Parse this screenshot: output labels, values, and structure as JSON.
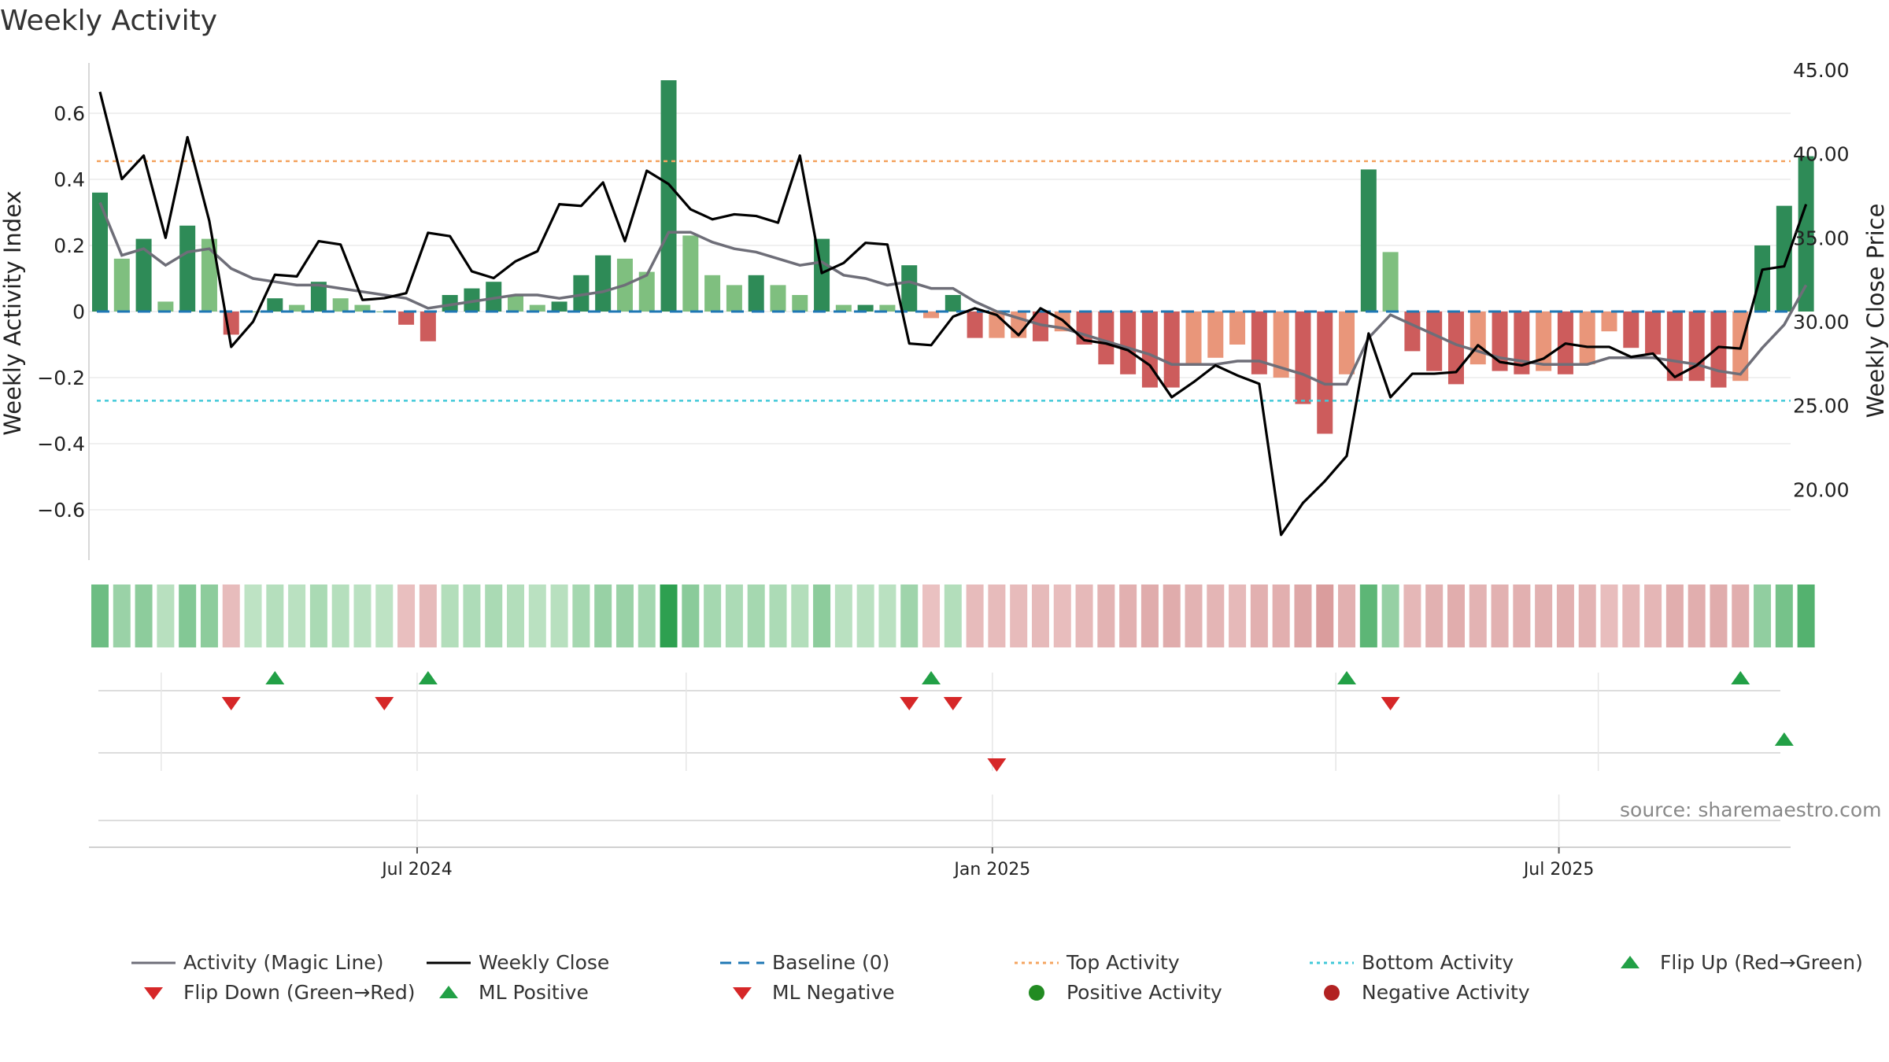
{
  "title": "Weekly Activity",
  "source": "source: sharemaestro.com",
  "axes": {
    "left_label": "Weekly Activity Index",
    "right_label": "Weekly Close Price",
    "left_ticks": [
      "0.6",
      "0.4",
      "0.2",
      "0",
      "−0.2",
      "−0.4",
      "−0.6"
    ],
    "left_tick_values": [
      0.6,
      0.4,
      0.2,
      0,
      -0.2,
      -0.4,
      -0.6
    ],
    "right_ticks": [
      "45.00",
      "40.00",
      "35.00",
      "30.00",
      "25.00",
      "20.00"
    ],
    "right_tick_values": [
      45,
      40,
      35,
      30,
      25,
      20
    ],
    "x_ticks": [
      {
        "label": "Jul 2024",
        "index": 14.5
      },
      {
        "label": "Jan 2025",
        "index": 40.8
      },
      {
        "label": "Jul 2025",
        "index": 66.7
      }
    ]
  },
  "colors": {
    "pos_strong": "#2e8b57",
    "pos_light": "#7fbf7f",
    "neg_strong": "#cd5c5c",
    "neg_light": "#e9967a",
    "magic_line": "#6e6e78",
    "close_line": "#000000",
    "baseline": "#1f77b4",
    "top": "#f4a460",
    "bottom": "#40c8d8",
    "flip_up": "#22a046",
    "flip_down": "#d62728"
  },
  "legend": [
    {
      "label": "Activity (Magic Line)",
      "symbol": "magic-line"
    },
    {
      "label": "Weekly Close",
      "symbol": "close-line"
    },
    {
      "label": "Baseline (0)",
      "symbol": "baseline"
    },
    {
      "label": "Top Activity",
      "symbol": "top"
    },
    {
      "label": "Bottom Activity",
      "symbol": "bottom"
    },
    {
      "label": "Flip Up (Red→Green)",
      "symbol": "tri-up"
    },
    {
      "label": "Flip Down (Green→Red)",
      "symbol": "tri-down"
    },
    {
      "label": "ML Positive",
      "symbol": "tri-up"
    },
    {
      "label": "ML Negative",
      "symbol": "tri-down"
    },
    {
      "label": "Positive Activity",
      "symbol": "dot-green"
    },
    {
      "label": "Negative Activity",
      "symbol": "dot-red"
    }
  ],
  "chart_data": {
    "type": "bar",
    "top_activity": 0.455,
    "bottom_activity": -0.27,
    "ylim": [
      -0.75,
      0.75
    ],
    "y2lim": [
      16,
      46
    ],
    "activity": [
      0.36,
      0.16,
      0.22,
      0.03,
      0.26,
      0.22,
      -0.07,
      0,
      0.04,
      0.02,
      0.09,
      0.04,
      0.02,
      0,
      -0.04,
      -0.09,
      0.05,
      0.07,
      0.09,
      0.05,
      0.02,
      0.03,
      0.11,
      0.17,
      0.16,
      0.12,
      0.7,
      0.23,
      0.11,
      0.08,
      0.11,
      0.08,
      0.05,
      0.22,
      0.02,
      0.02,
      0.02,
      0.14,
      -0.02,
      0.05,
      -0.08,
      -0.08,
      -0.08,
      -0.09,
      -0.06,
      -0.1,
      -0.16,
      -0.19,
      -0.23,
      -0.23,
      -0.16,
      -0.14,
      -0.1,
      -0.19,
      -0.2,
      -0.28,
      -0.37,
      -0.19,
      0.43,
      0.18,
      -0.12,
      -0.18,
      -0.22,
      -0.16,
      -0.18,
      -0.19,
      -0.18,
      -0.19,
      -0.16,
      -0.06,
      -0.11,
      -0.13,
      -0.21,
      -0.21,
      -0.23,
      -0.21,
      0.2,
      0.32,
      0.47
    ],
    "shade": [
      1,
      0,
      1,
      0,
      1,
      0,
      1,
      0,
      1,
      0,
      1,
      0,
      0,
      0,
      1,
      1,
      1,
      1,
      1,
      0,
      0,
      1,
      1,
      1,
      0,
      0,
      1,
      0,
      0,
      0,
      1,
      0,
      0,
      1,
      0,
      1,
      0,
      1,
      0,
      1,
      1,
      0,
      0,
      1,
      0,
      1,
      1,
      1,
      1,
      1,
      0,
      0,
      0,
      1,
      0,
      1,
      1,
      0,
      1,
      0,
      1,
      1,
      1,
      0,
      1,
      1,
      0,
      1,
      0,
      0,
      1,
      1,
      1,
      1,
      1,
      0,
      1,
      1,
      1
    ],
    "magic_line": [
      0.33,
      0.17,
      0.19,
      0.14,
      0.18,
      0.19,
      0.13,
      0.1,
      0.09,
      0.08,
      0.08,
      0.07,
      0.06,
      0.05,
      0.04,
      0.01,
      0.02,
      0.03,
      0.04,
      0.05,
      0.05,
      0.04,
      0.05,
      0.06,
      0.08,
      0.11,
      0.24,
      0.24,
      0.21,
      0.19,
      0.18,
      0.16,
      0.14,
      0.15,
      0.11,
      0.1,
      0.08,
      0.09,
      0.07,
      0.07,
      0.03,
      0.0,
      -0.02,
      -0.04,
      -0.05,
      -0.07,
      -0.09,
      -0.11,
      -0.13,
      -0.16,
      -0.16,
      -0.16,
      -0.15,
      -0.15,
      -0.17,
      -0.19,
      -0.22,
      -0.22,
      -0.08,
      -0.01,
      -0.04,
      -0.07,
      -0.1,
      -0.12,
      -0.14,
      -0.15,
      -0.16,
      -0.16,
      -0.16,
      -0.14,
      -0.14,
      -0.14,
      -0.15,
      -0.16,
      -0.18,
      -0.19,
      -0.11,
      -0.04,
      0.08
    ],
    "close": [
      43.7,
      38.5,
      39.9,
      35.0,
      41.0,
      36.0,
      28.5,
      30.0,
      32.8,
      32.7,
      34.8,
      34.6,
      31.3,
      31.4,
      31.7,
      35.3,
      35.1,
      33.0,
      32.6,
      33.6,
      34.2,
      37.0,
      36.9,
      38.3,
      34.8,
      39.0,
      38.2,
      36.7,
      36.1,
      36.4,
      36.3,
      35.9,
      39.9,
      32.9,
      33.5,
      34.7,
      34.6,
      28.7,
      28.6,
      30.3,
      30.8,
      30.4,
      29.2,
      30.8,
      30.1,
      28.9,
      28.7,
      28.3,
      27.4,
      25.5,
      26.4,
      27.4,
      26.8,
      26.3,
      17.3,
      19.2,
      20.5,
      22.0,
      29.3,
      25.5,
      26.9,
      26.9,
      27.0,
      28.6,
      27.6,
      27.4,
      27.8,
      28.7,
      28.5,
      28.5,
      27.9,
      28.1,
      26.7,
      27.4,
      28.5,
      28.4,
      33.1,
      33.3,
      37.0
    ],
    "flip_up_idx": [
      8,
      15,
      38,
      57,
      75
    ],
    "flip_down_idx": [
      6,
      13,
      37,
      39,
      59
    ],
    "ml_up_idx": [
      77
    ],
    "ml_down_idx": [
      41
    ]
  }
}
